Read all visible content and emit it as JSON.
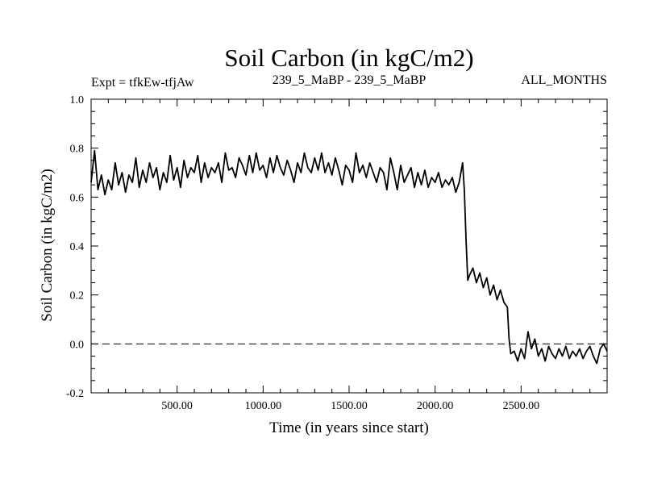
{
  "chart_data": {
    "type": "line",
    "title": "Soil Carbon (in kgC/m2)",
    "subtitle_left": "Expt = tfkEw-tfjAw",
    "subtitle_center": "239_5_MaBP - 239_5_MaBP",
    "subtitle_right": "ALL_MONTHS",
    "xlabel": "Time (in years since start)",
    "ylabel": "Soil Carbon (in kgC/m2)",
    "xlim": [
      0,
      3000
    ],
    "ylim": [
      -0.2,
      1.0
    ],
    "x_ticks": [
      500,
      1000,
      1500,
      2000,
      2500
    ],
    "x_tick_labels": [
      "500.00",
      "1000.00",
      "1500.00",
      "2000.00",
      "2500.00"
    ],
    "y_ticks": [
      -0.2,
      0.0,
      0.2,
      0.4,
      0.6,
      0.8,
      1.0
    ],
    "y_tick_labels": [
      "-0.2",
      "0.0",
      "0.2",
      "0.4",
      "0.6",
      "0.8",
      "1.0"
    ],
    "reference_line": {
      "y": 0.0,
      "style": "dashed"
    },
    "grid": false,
    "series": [
      {
        "color": "#000000",
        "x": [
          0,
          20,
          40,
          60,
          80,
          100,
          120,
          140,
          160,
          180,
          200,
          220,
          240,
          260,
          280,
          300,
          320,
          340,
          360,
          380,
          400,
          420,
          440,
          460,
          480,
          500,
          520,
          540,
          560,
          580,
          600,
          620,
          640,
          660,
          680,
          700,
          720,
          740,
          760,
          780,
          800,
          820,
          840,
          860,
          880,
          900,
          920,
          940,
          960,
          980,
          1000,
          1020,
          1040,
          1060,
          1080,
          1100,
          1120,
          1140,
          1160,
          1180,
          1200,
          1220,
          1240,
          1260,
          1280,
          1300,
          1320,
          1340,
          1360,
          1380,
          1400,
          1420,
          1440,
          1460,
          1480,
          1500,
          1520,
          1540,
          1560,
          1580,
          1600,
          1620,
          1640,
          1660,
          1680,
          1700,
          1720,
          1740,
          1760,
          1780,
          1800,
          1820,
          1840,
          1860,
          1880,
          1900,
          1920,
          1940,
          1960,
          1980,
          2000,
          2020,
          2040,
          2060,
          2080,
          2100,
          2120,
          2140,
          2160,
          2170,
          2180,
          2190,
          2200,
          2220,
          2240,
          2260,
          2280,
          2300,
          2320,
          2340,
          2360,
          2380,
          2400,
          2420,
          2430,
          2440,
          2460,
          2480,
          2500,
          2520,
          2540,
          2560,
          2580,
          2600,
          2620,
          2640,
          2660,
          2680,
          2700,
          2720,
          2740,
          2760,
          2780,
          2800,
          2820,
          2840,
          2860,
          2880,
          2900,
          2920,
          2940,
          2960,
          2980,
          3000
        ],
        "y": [
          0.66,
          0.79,
          0.63,
          0.69,
          0.61,
          0.67,
          0.63,
          0.74,
          0.65,
          0.7,
          0.62,
          0.69,
          0.66,
          0.76,
          0.64,
          0.71,
          0.66,
          0.74,
          0.68,
          0.72,
          0.63,
          0.7,
          0.66,
          0.77,
          0.67,
          0.72,
          0.64,
          0.75,
          0.68,
          0.72,
          0.7,
          0.77,
          0.66,
          0.74,
          0.68,
          0.72,
          0.7,
          0.74,
          0.66,
          0.78,
          0.71,
          0.72,
          0.68,
          0.76,
          0.73,
          0.69,
          0.77,
          0.7,
          0.78,
          0.71,
          0.73,
          0.68,
          0.76,
          0.7,
          0.77,
          0.72,
          0.69,
          0.75,
          0.71,
          0.66,
          0.74,
          0.7,
          0.78,
          0.72,
          0.7,
          0.76,
          0.71,
          0.78,
          0.7,
          0.74,
          0.69,
          0.76,
          0.71,
          0.65,
          0.73,
          0.71,
          0.66,
          0.78,
          0.7,
          0.73,
          0.68,
          0.74,
          0.7,
          0.66,
          0.72,
          0.7,
          0.63,
          0.76,
          0.7,
          0.63,
          0.73,
          0.66,
          0.69,
          0.72,
          0.64,
          0.7,
          0.65,
          0.71,
          0.64,
          0.68,
          0.66,
          0.7,
          0.64,
          0.67,
          0.65,
          0.68,
          0.62,
          0.66,
          0.74,
          0.63,
          0.42,
          0.26,
          0.28,
          0.31,
          0.25,
          0.29,
          0.23,
          0.27,
          0.2,
          0.24,
          0.18,
          0.22,
          0.17,
          0.15,
          0.02,
          -0.04,
          -0.03,
          -0.07,
          -0.02,
          -0.06,
          0.05,
          -0.02,
          0.02,
          -0.05,
          -0.02,
          -0.07,
          -0.01,
          -0.04,
          -0.06,
          -0.02,
          -0.05,
          -0.01,
          -0.06,
          -0.03,
          -0.05,
          -0.02,
          -0.06,
          -0.03,
          -0.01,
          -0.05,
          -0.08,
          -0.02,
          0.0,
          -0.03
        ]
      }
    ]
  }
}
